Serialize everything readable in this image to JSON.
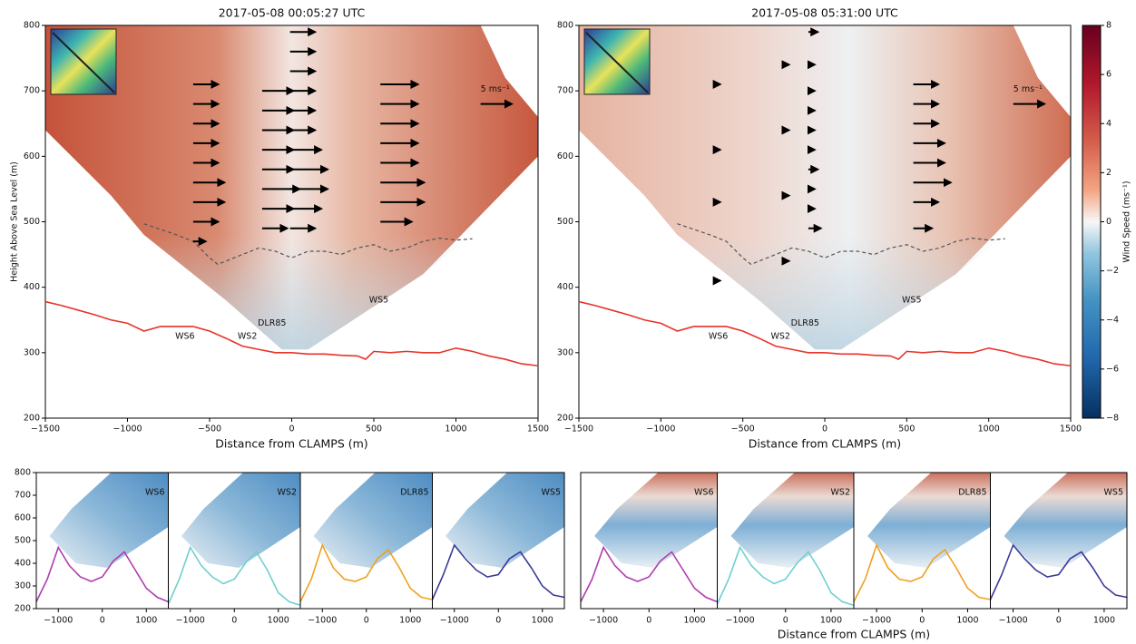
{
  "chart_data": [
    {
      "type": "vector-section",
      "title": "2017-05-08 00:05:27 UTC",
      "xlabel": "Distance from CLAMPS (m)",
      "ylabel": "Height Above Sea Level (m)",
      "xlim": [
        -1500,
        1500
      ],
      "ylim": [
        200,
        800
      ],
      "xticks": [
        {
          "value": -1500,
          "label": "−1500"
        },
        {
          "value": -1000,
          "label": "−1000"
        },
        {
          "value": -500,
          "label": "−500"
        },
        0,
        500,
        1000,
        1500
      ],
      "yticks": [
        200,
        300,
        400,
        500,
        600,
        700,
        800
      ],
      "terrain": {
        "color": "#e8332a",
        "x": [
          -1500,
          -1400,
          -1300,
          -1200,
          -1100,
          -1000,
          -900,
          -800,
          -700,
          -600,
          -500,
          -400,
          -300,
          -200,
          -100,
          0,
          100,
          200,
          300,
          400,
          450,
          500,
          600,
          700,
          800,
          900,
          1000,
          1100,
          1200,
          1300,
          1400,
          1500
        ],
        "y": [
          378,
          372,
          365,
          358,
          350,
          345,
          333,
          340,
          340,
          340,
          333,
          322,
          310,
          305,
          300,
          300,
          298,
          298,
          296,
          295,
          290,
          302,
          300,
          302,
          300,
          300,
          307,
          302,
          295,
          290,
          283,
          280
        ]
      },
      "boundary": {
        "color": "#555555",
        "x": [
          -900,
          -700,
          -600,
          -500,
          -450,
          -300,
          -200,
          -100,
          0,
          100,
          200,
          300,
          400,
          500,
          600,
          700,
          800,
          900,
          1000,
          1100
        ],
        "y": [
          497,
          480,
          470,
          445,
          435,
          450,
          460,
          455,
          445,
          455,
          455,
          450,
          460,
          465,
          455,
          460,
          470,
          475,
          472,
          474
        ]
      },
      "sites": [
        "WS6",
        "WS2",
        "DLR85",
        "WS5"
      ],
      "vectors": {
        "x": [
          -600,
          -600,
          -600,
          -600,
          -600,
          -600,
          -600,
          -600,
          -600,
          -180,
          -180,
          -180,
          -180,
          -180,
          -180,
          -180,
          -180,
          -10,
          -10,
          -10,
          -10,
          -10,
          -10,
          -10,
          -10,
          -10,
          -10,
          -10,
          540,
          540,
          540,
          540,
          540,
          540,
          540,
          540
        ],
        "y": [
          470,
          500,
          530,
          560,
          590,
          620,
          650,
          680,
          710,
          490,
          520,
          550,
          580,
          610,
          640,
          670,
          700,
          490,
          520,
          550,
          580,
          610,
          640,
          670,
          700,
          730,
          760,
          790,
          500,
          530,
          560,
          590,
          620,
          650,
          680,
          710
        ],
        "u": [
          2,
          4,
          5,
          5,
          4,
          4,
          4,
          4,
          4,
          4,
          5,
          6,
          5,
          5,
          5,
          5,
          5,
          4,
          5,
          6,
          6,
          5,
          4,
          4,
          4,
          4,
          4,
          4,
          5,
          7,
          7,
          6,
          6,
          6,
          6,
          6
        ]
      },
      "reference": {
        "value": 5,
        "label": "5 ms⁻¹"
      }
    },
    {
      "type": "vector-section",
      "title": "2017-05-08 05:31:00 UTC",
      "xlabel": "Distance from CLAMPS (m)",
      "xlim": [
        -1500,
        1500
      ],
      "ylim": [
        200,
        800
      ],
      "xticks": [
        {
          "value": -1500,
          "label": "−1500"
        },
        {
          "value": -1000,
          "label": "−1000"
        },
        {
          "value": -500,
          "label": "−500"
        },
        0,
        500,
        1000,
        1500
      ],
      "yticks": [
        200,
        300,
        400,
        500,
        600,
        700,
        800
      ],
      "terrain": {
        "color": "#e8332a",
        "x": [
          -1500,
          -1400,
          -1300,
          -1200,
          -1100,
          -1000,
          -900,
          -800,
          -700,
          -600,
          -500,
          -400,
          -300,
          -200,
          -100,
          0,
          100,
          200,
          300,
          400,
          450,
          500,
          600,
          700,
          800,
          900,
          1000,
          1100,
          1200,
          1300,
          1400,
          1500
        ],
        "y": [
          378,
          372,
          365,
          358,
          350,
          345,
          333,
          340,
          340,
          340,
          333,
          322,
          310,
          305,
          300,
          300,
          298,
          298,
          296,
          295,
          290,
          302,
          300,
          302,
          300,
          300,
          307,
          302,
          295,
          290,
          283,
          280
        ]
      },
      "boundary": {
        "color": "#555555",
        "x": [
          -900,
          -700,
          -600,
          -500,
          -450,
          -300,
          -200,
          -100,
          0,
          100,
          200,
          300,
          400,
          500,
          600,
          700,
          800,
          900,
          1000,
          1100
        ],
        "y": [
          497,
          480,
          470,
          445,
          435,
          450,
          460,
          455,
          445,
          455,
          455,
          450,
          460,
          465,
          455,
          460,
          470,
          475,
          472,
          474
        ]
      },
      "sites": [
        "WS6",
        "WS2",
        "DLR85",
        "WS5"
      ],
      "vectors": {
        "x": [
          -650,
          -650,
          -650,
          -650,
          -230,
          -230,
          -230,
          -230,
          -100,
          -100,
          -100,
          -100,
          -100,
          -100,
          -100,
          -100,
          -100,
          -100,
          540,
          540,
          540,
          540,
          540,
          540,
          540,
          540
        ],
        "y": [
          410,
          530,
          610,
          710,
          440,
          540,
          640,
          740,
          490,
          520,
          550,
          580,
          610,
          640,
          670,
          700,
          740,
          790,
          490,
          530,
          560,
          590,
          620,
          650,
          680,
          710
        ],
        "u": [
          0.3,
          0.3,
          0.3,
          0.3,
          0.3,
          0.3,
          0.3,
          0.3,
          2,
          1,
          1,
          1.5,
          1,
          1,
          1,
          1,
          1,
          1.5,
          3,
          4,
          6,
          5,
          5,
          4,
          4,
          4
        ]
      },
      "reference": {
        "value": 5,
        "label": "5 ms⁻¹"
      }
    },
    {
      "type": "colorbar",
      "label": "Wind Speed (ms⁻¹)",
      "ylim": [
        -8,
        8
      ],
      "yticks": [
        {
          "value": -8,
          "label": "−8"
        },
        {
          "value": -6,
          "label": "−6"
        },
        {
          "value": -4,
          "label": "−4"
        },
        {
          "value": -2,
          "label": "−2"
        },
        0,
        2,
        4,
        6,
        8
      ]
    },
    {
      "type": "profile-section",
      "site": "WS6",
      "xlim": [
        -1500,
        1500
      ],
      "ylim": [
        200,
        800
      ],
      "xticks": [
        {
          "value": -1000,
          "label": "−1000"
        },
        0,
        1000
      ],
      "yticks": [
        200,
        300,
        400,
        500,
        600,
        700,
        800
      ],
      "terrain": {
        "color": "#b03bb0",
        "x": [
          -1500,
          -1250,
          -1000,
          -750,
          -500,
          -250,
          0,
          250,
          500,
          750,
          1000,
          1250,
          1500
        ],
        "y": [
          230,
          330,
          470,
          390,
          340,
          320,
          340,
          410,
          450,
          370,
          290,
          250,
          230
        ]
      }
    },
    {
      "type": "profile-section",
      "site": "WS2",
      "xlim": [
        -1500,
        1500
      ],
      "ylim": [
        200,
        800
      ],
      "xticks": [
        {
          "value": -1000,
          "label": "−1000"
        },
        0,
        1000
      ],
      "terrain": {
        "color": "#6fcfd0",
        "x": [
          -1500,
          -1250,
          -1000,
          -750,
          -500,
          -250,
          0,
          250,
          500,
          750,
          1000,
          1250,
          1500
        ],
        "y": [
          220,
          330,
          470,
          390,
          340,
          310,
          330,
          400,
          450,
          370,
          270,
          230,
          215
        ]
      }
    },
    {
      "type": "profile-section",
      "site": "DLR85",
      "xlim": [
        -1500,
        1500
      ],
      "ylim": [
        200,
        800
      ],
      "xticks": [
        {
          "value": -1000,
          "label": "−1000"
        },
        0,
        1000
      ],
      "terrain": {
        "color": "#f0a020",
        "x": [
          -1500,
          -1250,
          -1000,
          -750,
          -500,
          -250,
          0,
          250,
          500,
          750,
          1000,
          1250,
          1500
        ],
        "y": [
          230,
          330,
          480,
          380,
          330,
          320,
          340,
          420,
          460,
          380,
          290,
          250,
          240
        ]
      }
    },
    {
      "type": "profile-section",
      "site": "WS5",
      "xlim": [
        -1500,
        1500
      ],
      "ylim": [
        200,
        800
      ],
      "xticks": [
        {
          "value": -1000,
          "label": "−1000"
        },
        0,
        1000
      ],
      "terrain": {
        "color": "#3a3a9a",
        "x": [
          -1500,
          -1250,
          -1000,
          -750,
          -500,
          -250,
          0,
          250,
          500,
          750,
          1000,
          1250,
          1500
        ],
        "y": [
          240,
          350,
          480,
          420,
          370,
          340,
          350,
          420,
          450,
          380,
          300,
          260,
          250
        ]
      }
    },
    {
      "type": "profile-section",
      "site": "WS6",
      "xlim": [
        -1500,
        1500
      ],
      "ylim": [
        200,
        800
      ],
      "xticks": [
        {
          "value": -1000,
          "label": "−1000"
        },
        0,
        1000
      ],
      "terrain": {
        "color": "#b03bb0",
        "x": [
          -1500,
          -1250,
          -1000,
          -750,
          -500,
          -250,
          0,
          250,
          500,
          750,
          1000,
          1250,
          1500
        ],
        "y": [
          230,
          330,
          470,
          390,
          340,
          320,
          340,
          410,
          450,
          370,
          290,
          250,
          230
        ]
      }
    },
    {
      "type": "profile-section",
      "site": "WS2",
      "xlim": [
        -1500,
        1500
      ],
      "ylim": [
        200,
        800
      ],
      "xticks": [
        {
          "value": -1000,
          "label": "−1000"
        },
        0,
        1000
      ],
      "terrain": {
        "color": "#6fcfd0",
        "x": [
          -1500,
          -1250,
          -1000,
          -750,
          -500,
          -250,
          0,
          250,
          500,
          750,
          1000,
          1250,
          1500
        ],
        "y": [
          220,
          330,
          470,
          390,
          340,
          310,
          330,
          400,
          450,
          370,
          270,
          230,
          215
        ]
      }
    },
    {
      "type": "profile-section",
      "site": "DLR85",
      "xlim": [
        -1500,
        1500
      ],
      "ylim": [
        200,
        800
      ],
      "xticks": [
        {
          "value": -1000,
          "label": "−1000"
        },
        0,
        1000
      ],
      "xlabel": "Distance from CLAMPS (m)",
      "terrain": {
        "color": "#f0a020",
        "x": [
          -1500,
          -1250,
          -1000,
          -750,
          -500,
          -250,
          0,
          250,
          500,
          750,
          1000,
          1250,
          1500
        ],
        "y": [
          230,
          330,
          480,
          380,
          330,
          320,
          340,
          420,
          460,
          380,
          290,
          250,
          240
        ]
      }
    },
    {
      "type": "profile-section",
      "site": "WS5",
      "xlim": [
        -1500,
        1500
      ],
      "ylim": [
        200,
        800
      ],
      "xticks": [
        {
          "value": -1000,
          "label": "−1000"
        },
        0,
        1000
      ],
      "terrain": {
        "color": "#3a3a9a",
        "x": [
          -1500,
          -1250,
          -1000,
          -750,
          -500,
          -250,
          0,
          250,
          500,
          750,
          1000,
          1250,
          1500
        ],
        "y": [
          240,
          350,
          480,
          420,
          370,
          340,
          350,
          420,
          450,
          380,
          300,
          260,
          250
        ]
      }
    }
  ]
}
